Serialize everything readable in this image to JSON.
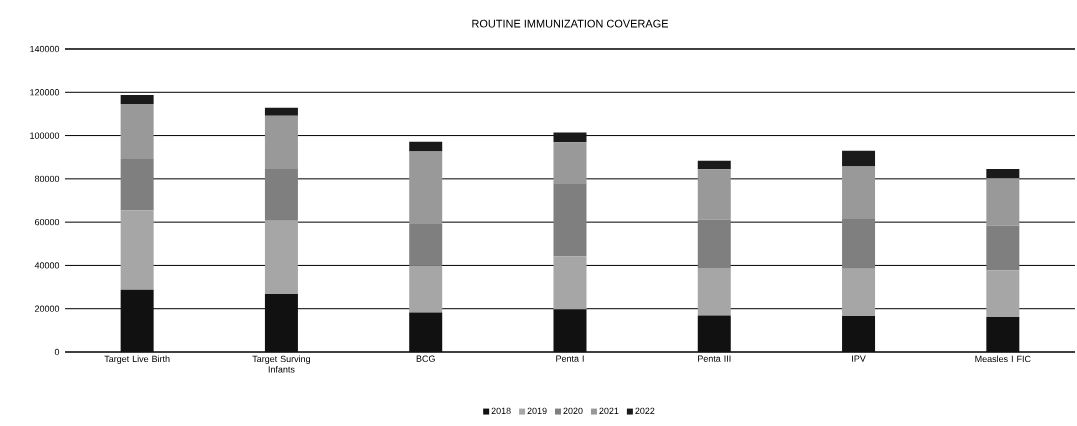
{
  "chart_data": {
    "type": "bar",
    "title": "ROUTINE IMMUNIZATION COVERAGE",
    "stacked": true,
    "categories": [
      "Target Live Birth",
      "Target Surving Infants",
      "BCG",
      "Penta I",
      "Penta III",
      "IPV",
      "Measles I FIC"
    ],
    "series": [
      {
        "name": "2018",
        "color": "#111111",
        "values": [
          28800,
          26800,
          18300,
          19800,
          16900,
          16600,
          16200
        ]
      },
      {
        "name": "2019",
        "color": "#a6a6a6",
        "values": [
          36600,
          33800,
          21500,
          24300,
          21900,
          21900,
          21500
        ]
      },
      {
        "name": "2020",
        "color": "#7f7f7f",
        "values": [
          23800,
          24300,
          19700,
          33900,
          22300,
          23000,
          20700
        ]
      },
      {
        "name": "2021",
        "color": "#999999",
        "values": [
          25400,
          24300,
          33100,
          18900,
          23300,
          24200,
          21900
        ]
      },
      {
        "name": "2022",
        "color": "#1a1a1a",
        "values": [
          4100,
          3700,
          4600,
          4500,
          4000,
          7300,
          4300
        ]
      }
    ],
    "ylim": [
      0,
      140000
    ],
    "yticks": [
      0,
      20000,
      40000,
      60000,
      80000,
      100000,
      120000,
      140000
    ],
    "grid": "y",
    "legend": "bottom"
  }
}
